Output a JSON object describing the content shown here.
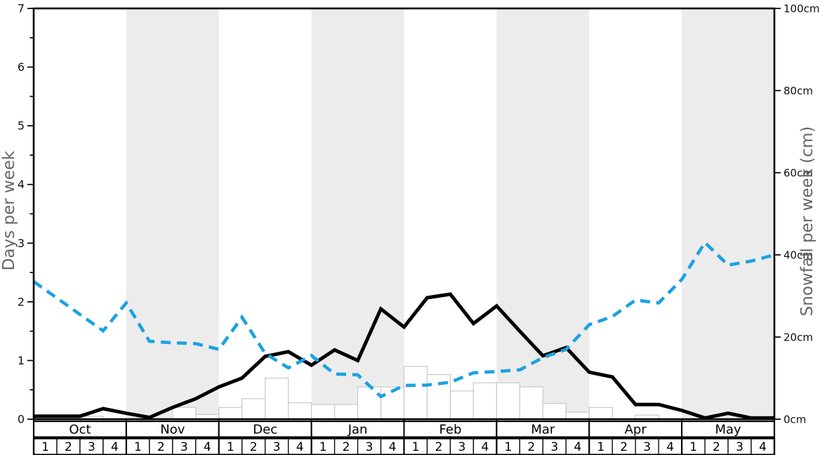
{
  "colors": {
    "days_line": "#000000",
    "snowfall_line": "#1ba1e2",
    "month_band": "#ececec",
    "bar_fill": "#ffffff",
    "bar_stroke": "#c9c9c9",
    "axis_title": "#666666",
    "tick_label": "#111111",
    "spine": "#000000",
    "footer_border": "#000000"
  },
  "chart_data": {
    "type": "line",
    "title": "",
    "months": [
      "Oct",
      "Nov",
      "Dec",
      "Jan",
      "Feb",
      "Mar",
      "Apr",
      "May"
    ],
    "week_labels": [
      "1",
      "2",
      "3",
      "4"
    ],
    "shaded_month_indices": [
      1,
      3,
      5,
      7
    ],
    "left_axis": {
      "label": "Days per week",
      "min": 0,
      "max": 7,
      "major_tick_step": 1,
      "minor_tick_step": 0.5,
      "tick_labels": [
        "0",
        "1",
        "2",
        "3",
        "4",
        "5",
        "6",
        "7"
      ]
    },
    "right_axis": {
      "label": "Snowfall per week (cm)",
      "min": 0,
      "max": 100,
      "major_tick_step": 20,
      "tick_labels": [
        "0cm",
        "20cm",
        "40cm",
        "60cm",
        "80cm",
        "100cm"
      ]
    },
    "x_layout": {
      "n_weeks": 32,
      "n_line_points": 33,
      "note": "line points fall on week boundaries from left plot edge to right plot edge"
    },
    "series": [
      {
        "name": "days-per-week",
        "axis": "left",
        "line_style": "solid",
        "color": "#000000",
        "values": [
          0.05,
          0.05,
          0.05,
          0.18,
          0.1,
          0.03,
          0.2,
          0.35,
          0.55,
          0.7,
          1.07,
          1.15,
          0.92,
          1.18,
          1.0,
          1.88,
          1.57,
          2.07,
          2.13,
          1.63,
          1.93,
          1.5,
          1.08,
          1.22,
          0.8,
          0.72,
          0.25,
          0.25,
          0.15,
          0.02,
          0.1,
          0.02,
          0.02
        ]
      },
      {
        "name": "snowfall-per-week-cm",
        "axis": "right",
        "line_style": "dashed",
        "color": "#1ba1e2",
        "values": [
          33.5,
          29.5,
          25.5,
          21.5,
          28.3,
          19,
          18.6,
          18.4,
          17,
          24.8,
          16,
          12.5,
          15.5,
          11,
          10.8,
          5.5,
          8.2,
          8.3,
          9,
          11.3,
          11.6,
          12,
          15,
          17,
          23,
          25,
          29,
          28.3,
          34,
          43,
          37.5,
          38.5,
          40
        ]
      }
    ],
    "bars": {
      "name": "weekly-histogram",
      "axis": "left",
      "values": [
        0,
        0,
        0.05,
        0,
        0,
        0,
        0.2,
        0.08,
        0.2,
        0.35,
        0.7,
        0.28,
        0.25,
        0.25,
        0.55,
        0.55,
        0.9,
        0.76,
        0.48,
        0.62,
        0.62,
        0.55,
        0.27,
        0.12,
        0.2,
        0,
        0.07,
        0,
        0,
        0,
        0,
        0
      ]
    }
  }
}
